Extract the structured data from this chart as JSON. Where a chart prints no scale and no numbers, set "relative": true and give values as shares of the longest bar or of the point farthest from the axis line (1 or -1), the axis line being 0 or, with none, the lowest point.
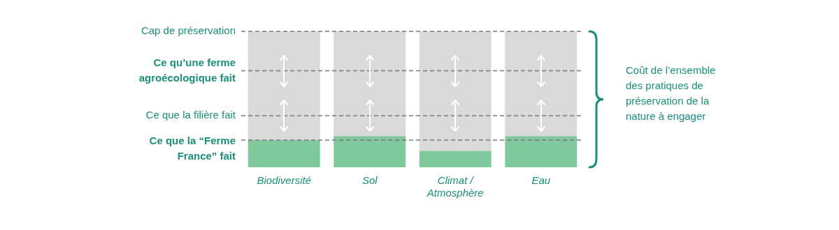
{
  "chart_data": {
    "type": "bar",
    "relative": true,
    "stacked": true,
    "legend": false,
    "grid": false,
    "categories": [
      "Biodiversité",
      "Sol",
      "Climat / Atmosphère",
      "Eau"
    ],
    "series": [
      {
        "color": "#80c99c",
        "values": [
          0.2,
          0.23,
          0.12,
          0.23
        ]
      },
      {
        "color": "#d9d9d9",
        "values": [
          0.8,
          0.77,
          0.88,
          0.77
        ]
      }
    ],
    "ref_lines": [
      {
        "axis": "y",
        "value": 1,
        "label": "Cap de préservation",
        "color": "#777777",
        "line_style": "dashed"
      },
      {
        "axis": "y",
        "value": 0.71,
        "label": "Ce qu’une ferme agroécologique fait",
        "color": "#777777",
        "line_style": "dashed"
      },
      {
        "axis": "y",
        "value": 0.38,
        "label": "Ce que la filière fait",
        "color": "#777777",
        "line_style": "dashed"
      },
      {
        "axis": "y",
        "value": 0.2,
        "label": "Ce que la “Ferme France” fait",
        "color": "#777777",
        "line_style": "dashed"
      }
    ],
    "annotations": [
      "Coût de l’ensemble des pratiques de préservation de la nature à engager"
    ]
  }
}
